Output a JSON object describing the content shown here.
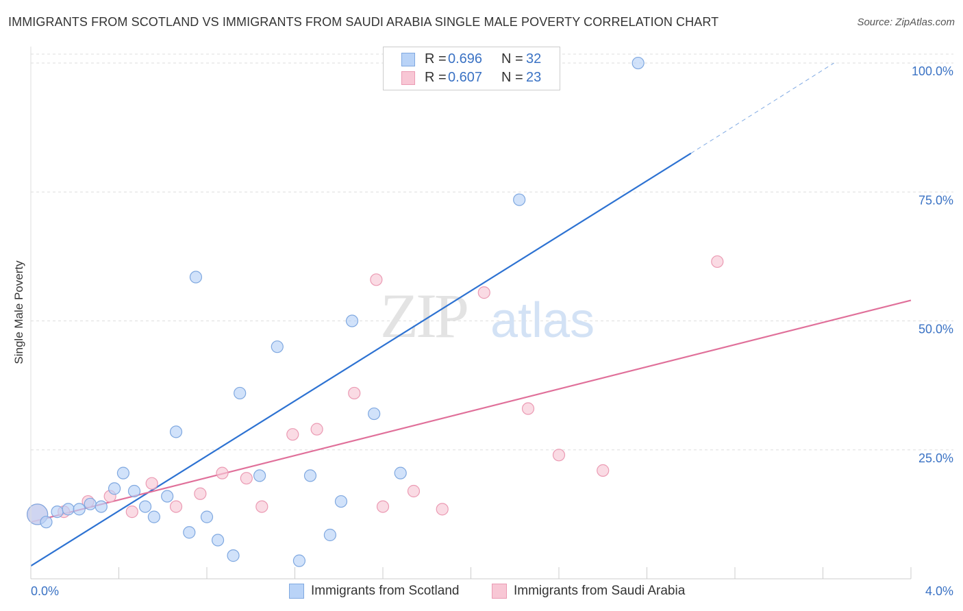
{
  "title": "IMMIGRANTS FROM SCOTLAND VS IMMIGRANTS FROM SAUDI ARABIA SINGLE MALE POVERTY CORRELATION CHART",
  "source": "Source: ZipAtlas.com",
  "watermark": {
    "zip": "ZIP",
    "atlas": "atlas"
  },
  "legend": {
    "series1": {
      "r_label": "R =",
      "r_value": "0.696",
      "n_label": "N =",
      "n_value": "32"
    },
    "series2": {
      "r_label": "R =",
      "r_value": "0.607",
      "n_label": "N =",
      "n_value": "23"
    }
  },
  "colors": {
    "scotland_fill": "#b9d3f7",
    "scotland_stroke": "#7fa8e0",
    "scotland_line": "#2d72d2",
    "saudi_fill": "#f8c7d5",
    "saudi_stroke": "#eb9ab3",
    "saudi_line": "#e0709a",
    "axis_text": "#3a72c4",
    "grid": "#dddddd"
  },
  "chart_data": {
    "type": "scatter",
    "title": "IMMIGRANTS FROM SCOTLAND VS IMMIGRANTS FROM SAUDI ARABIA SINGLE MALE POVERTY CORRELATION CHART",
    "xlabel": "",
    "ylabel": "Single Male Poverty",
    "xlim": [
      0,
      4.0
    ],
    "ylim": [
      0,
      102
    ],
    "x_tick_labels": [
      "0.0%",
      "4.0%"
    ],
    "y_ticks": [
      25,
      50,
      75,
      100
    ],
    "y_tick_labels": [
      "25.0%",
      "50.0%",
      "75.0%",
      "100.0%"
    ],
    "grid": true,
    "legend_position": "bottom",
    "series": [
      {
        "name": "Immigrants from Scotland",
        "points": [
          [
            0.03,
            12.5
          ],
          [
            0.07,
            11
          ],
          [
            0.12,
            13
          ],
          [
            0.17,
            13.5
          ],
          [
            0.22,
            13.5
          ],
          [
            0.27,
            14.5
          ],
          [
            0.32,
            14
          ],
          [
            0.38,
            17.5
          ],
          [
            0.42,
            20.5
          ],
          [
            0.47,
            17
          ],
          [
            0.52,
            14
          ],
          [
            0.56,
            12
          ],
          [
            0.62,
            16
          ],
          [
            0.66,
            28.5
          ],
          [
            0.72,
            9
          ],
          [
            0.75,
            58.5
          ],
          [
            0.8,
            12
          ],
          [
            0.85,
            7.5
          ],
          [
            0.92,
            4.5
          ],
          [
            0.95,
            36
          ],
          [
            1.04,
            20
          ],
          [
            1.12,
            45
          ],
          [
            1.22,
            3.5
          ],
          [
            1.27,
            20
          ],
          [
            1.36,
            8.5
          ],
          [
            1.41,
            15
          ],
          [
            1.46,
            50
          ],
          [
            1.56,
            32
          ],
          [
            1.68,
            20.5
          ],
          [
            1.83,
            100
          ],
          [
            2.22,
            73.5
          ],
          [
            2.76,
            100
          ]
        ],
        "trend": {
          "x": [
            0,
            3.0
          ],
          "y": [
            2.5,
            82.5
          ],
          "extended_dashed_to": [
            3.65,
            100
          ]
        }
      },
      {
        "name": "Immigrants from Saudi Arabia",
        "points": [
          [
            0.03,
            12.5
          ],
          [
            0.15,
            13
          ],
          [
            0.26,
            15
          ],
          [
            0.36,
            16
          ],
          [
            0.46,
            13
          ],
          [
            0.55,
            18.5
          ],
          [
            0.66,
            14
          ],
          [
            0.77,
            16.5
          ],
          [
            0.87,
            20.5
          ],
          [
            0.98,
            19.5
          ],
          [
            1.05,
            14
          ],
          [
            1.19,
            28
          ],
          [
            1.3,
            29
          ],
          [
            1.47,
            36
          ],
          [
            1.57,
            58
          ],
          [
            1.6,
            14
          ],
          [
            1.74,
            17
          ],
          [
            1.87,
            13.5
          ],
          [
            2.06,
            55.5
          ],
          [
            2.26,
            33
          ],
          [
            2.4,
            24
          ],
          [
            2.6,
            21
          ],
          [
            3.12,
            61.5
          ]
        ],
        "trend": {
          "x": [
            0,
            4.0
          ],
          "y": [
            11,
            54
          ]
        }
      }
    ]
  },
  "bottom_legend": {
    "scotland": "Immigrants from Scotland",
    "saudi": "Immigrants from Saudi Arabia"
  }
}
